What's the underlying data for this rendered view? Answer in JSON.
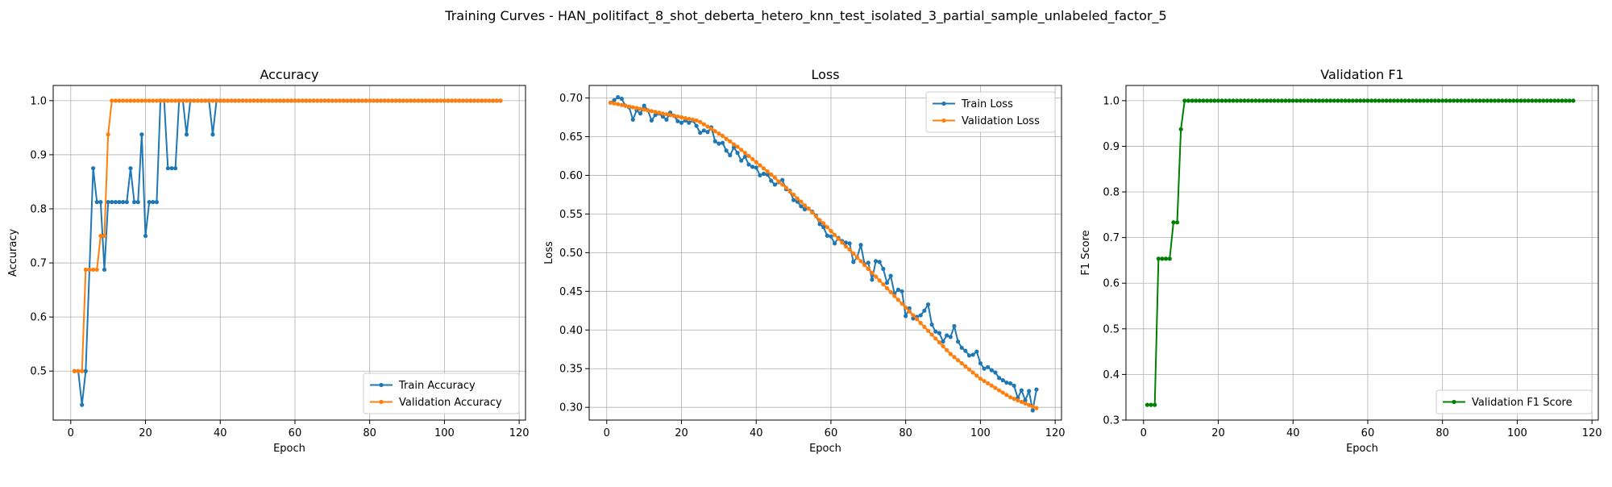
{
  "figure": {
    "suptitle": "Training Curves - HAN_politifact_8_shot_deberta_hetero_knn_test_isolated_3_partial_sample_unlabeled_factor_5"
  },
  "colors": {
    "blue": "#1f77b4",
    "orange": "#ff7f0e",
    "green": "#008000",
    "grid": "#b0b0b0"
  },
  "chart_data": [
    {
      "type": "line",
      "title": "Accuracy",
      "xlabel": "Epoch",
      "ylabel": "Accuracy",
      "xlim": [
        -4.7,
        121.7
      ],
      "ylim": [
        0.4094,
        1.0281
      ],
      "xticks": [
        0,
        20,
        40,
        60,
        80,
        100,
        120
      ],
      "yticks": [
        0.5,
        0.6,
        0.7,
        0.8,
        0.9,
        1.0
      ],
      "ytick_labels": [
        "0.5",
        "0.6",
        "0.7",
        "0.8",
        "0.9",
        "1.0"
      ],
      "grid": true,
      "legend_loc": "lower-right",
      "series": [
        {
          "name": "Train Accuracy",
          "color": "#1f77b4",
          "x_start": 1,
          "values": [
            0.5,
            0.5,
            0.4375,
            0.5,
            0.6875,
            0.875,
            0.8125,
            0.8125,
            0.6875,
            0.8125,
            0.8125,
            0.8125,
            0.8125,
            0.8125,
            0.8125,
            0.875,
            0.8125,
            0.8125,
            0.9375,
            0.75,
            0.8125,
            0.8125,
            0.8125,
            1.0,
            1.0,
            0.875,
            0.875,
            0.875,
            1.0,
            1.0,
            0.9375,
            1.0,
            1.0,
            1.0,
            1.0,
            1.0,
            1.0,
            0.9375,
            1.0,
            1.0,
            1.0,
            1.0,
            1.0,
            1.0,
            1.0,
            1.0,
            1.0,
            1.0,
            1.0,
            1.0,
            1.0,
            1.0,
            1.0,
            1.0,
            1.0,
            1.0,
            1.0,
            1.0,
            1.0,
            1.0,
            1.0,
            1.0,
            1.0,
            1.0,
            1.0,
            1.0,
            1.0,
            1.0,
            1.0,
            1.0,
            1.0,
            1.0,
            1.0,
            1.0,
            1.0,
            1.0,
            1.0,
            1.0,
            1.0,
            1.0,
            1.0,
            1.0,
            1.0,
            1.0,
            1.0,
            1.0,
            1.0,
            1.0,
            1.0,
            1.0,
            1.0,
            1.0,
            1.0,
            1.0,
            1.0,
            1.0,
            1.0,
            1.0,
            1.0,
            1.0,
            1.0,
            1.0,
            1.0,
            1.0,
            1.0,
            1.0,
            1.0,
            1.0,
            1.0,
            1.0,
            1.0,
            1.0,
            1.0,
            1.0,
            1.0
          ]
        },
        {
          "name": "Validation Accuracy",
          "color": "#ff7f0e",
          "x_start": 1,
          "values": [
            0.5,
            0.5,
            0.5,
            0.6875,
            0.6875,
            0.6875,
            0.6875,
            0.75,
            0.75,
            0.9375,
            1.0,
            1.0,
            1.0,
            1.0,
            1.0,
            1.0,
            1.0,
            1.0,
            1.0,
            1.0,
            1.0,
            1.0,
            1.0,
            1.0,
            1.0,
            1.0,
            1.0,
            1.0,
            1.0,
            1.0,
            1.0,
            1.0,
            1.0,
            1.0,
            1.0,
            1.0,
            1.0,
            1.0,
            1.0,
            1.0,
            1.0,
            1.0,
            1.0,
            1.0,
            1.0,
            1.0,
            1.0,
            1.0,
            1.0,
            1.0,
            1.0,
            1.0,
            1.0,
            1.0,
            1.0,
            1.0,
            1.0,
            1.0,
            1.0,
            1.0,
            1.0,
            1.0,
            1.0,
            1.0,
            1.0,
            1.0,
            1.0,
            1.0,
            1.0,
            1.0,
            1.0,
            1.0,
            1.0,
            1.0,
            1.0,
            1.0,
            1.0,
            1.0,
            1.0,
            1.0,
            1.0,
            1.0,
            1.0,
            1.0,
            1.0,
            1.0,
            1.0,
            1.0,
            1.0,
            1.0,
            1.0,
            1.0,
            1.0,
            1.0,
            1.0,
            1.0,
            1.0,
            1.0,
            1.0,
            1.0,
            1.0,
            1.0,
            1.0,
            1.0,
            1.0,
            1.0,
            1.0,
            1.0,
            1.0,
            1.0,
            1.0,
            1.0,
            1.0,
            1.0,
            1.0
          ]
        }
      ]
    },
    {
      "type": "line",
      "title": "Loss",
      "xlabel": "Epoch",
      "ylabel": "Loss",
      "xlim": [
        -4.7,
        121.7
      ],
      "ylim": [
        0.2835,
        0.7162
      ],
      "xticks": [
        0,
        20,
        40,
        60,
        80,
        100,
        120
      ],
      "yticks": [
        0.3,
        0.35,
        0.4,
        0.45,
        0.5,
        0.55,
        0.6,
        0.65,
        0.7
      ],
      "ytick_labels": [
        "0.30",
        "0.35",
        "0.40",
        "0.45",
        "0.50",
        "0.55",
        "0.60",
        "0.65",
        "0.70"
      ],
      "grid": true,
      "legend_loc": "top-right",
      "series": [
        {
          "name": "Train Loss",
          "color": "#1f77b4",
          "x_start": 1,
          "values": [
            0.694,
            0.697,
            0.701,
            0.699,
            0.69,
            0.688,
            0.672,
            0.684,
            0.68,
            0.69,
            0.684,
            0.671,
            0.678,
            0.68,
            0.676,
            0.672,
            0.681,
            0.677,
            0.67,
            0.668,
            0.671,
            0.668,
            0.671,
            0.664,
            0.655,
            0.658,
            0.656,
            0.662,
            0.644,
            0.641,
            0.642,
            0.632,
            0.626,
            0.636,
            0.629,
            0.619,
            0.624,
            0.614,
            0.611,
            0.61,
            0.6,
            0.602,
            0.601,
            0.593,
            0.588,
            0.591,
            0.594,
            0.582,
            0.58,
            0.568,
            0.566,
            0.56,
            0.556,
            0.557,
            0.553,
            0.548,
            0.537,
            0.533,
            0.522,
            0.521,
            0.512,
            0.519,
            0.515,
            0.513,
            0.512,
            0.488,
            0.494,
            0.51,
            0.485,
            0.487,
            0.465,
            0.489,
            0.488,
            0.479,
            0.461,
            0.47,
            0.447,
            0.452,
            0.45,
            0.418,
            0.428,
            0.415,
            0.417,
            0.419,
            0.425,
            0.433,
            0.407,
            0.398,
            0.396,
            0.385,
            0.393,
            0.391,
            0.405,
            0.385,
            0.377,
            0.373,
            0.367,
            0.368,
            0.372,
            0.357,
            0.35,
            0.352,
            0.348,
            0.345,
            0.338,
            0.335,
            0.332,
            0.331,
            0.328,
            0.312,
            0.322,
            0.309,
            0.321,
            0.296,
            0.323
          ]
        },
        {
          "name": "Validation Loss",
          "color": "#ff7f0e",
          "x_start": 1,
          "values": [
            0.694,
            0.693,
            0.692,
            0.691,
            0.69,
            0.689,
            0.688,
            0.687,
            0.686,
            0.685,
            0.684,
            0.683,
            0.682,
            0.681,
            0.68,
            0.679,
            0.678,
            0.677,
            0.676,
            0.675,
            0.674,
            0.673,
            0.672,
            0.671,
            0.669,
            0.666,
            0.663,
            0.66,
            0.657,
            0.654,
            0.651,
            0.647,
            0.644,
            0.64,
            0.637,
            0.633,
            0.629,
            0.625,
            0.621,
            0.617,
            0.613,
            0.609,
            0.605,
            0.601,
            0.597,
            0.592,
            0.588,
            0.584,
            0.579,
            0.575,
            0.57,
            0.566,
            0.561,
            0.557,
            0.552,
            0.547,
            0.542,
            0.538,
            0.533,
            0.528,
            0.523,
            0.518,
            0.513,
            0.508,
            0.504,
            0.499,
            0.494,
            0.489,
            0.484,
            0.479,
            0.474,
            0.469,
            0.464,
            0.459,
            0.454,
            0.449,
            0.444,
            0.439,
            0.434,
            0.429,
            0.424,
            0.419,
            0.414,
            0.409,
            0.404,
            0.399,
            0.394,
            0.389,
            0.384,
            0.379,
            0.374,
            0.369,
            0.365,
            0.361,
            0.357,
            0.353,
            0.349,
            0.345,
            0.341,
            0.337,
            0.334,
            0.331,
            0.328,
            0.325,
            0.322,
            0.319,
            0.316,
            0.313,
            0.311,
            0.309,
            0.307,
            0.305,
            0.303,
            0.301,
            0.299
          ]
        }
      ]
    },
    {
      "type": "line",
      "title": "Validation F1",
      "xlabel": "Epoch",
      "ylabel": "F1 Score",
      "xlim": [
        -4.7,
        121.7
      ],
      "ylim": [
        0.3,
        1.0333
      ],
      "xticks": [
        0,
        20,
        40,
        60,
        80,
        100,
        120
      ],
      "yticks": [
        0.3,
        0.4,
        0.5,
        0.6,
        0.7,
        0.8,
        0.9,
        1.0
      ],
      "ytick_labels": [
        "0.3",
        "0.4",
        "0.5",
        "0.6",
        "0.7",
        "0.8",
        "0.9",
        "1.0"
      ],
      "grid": true,
      "legend_loc": "lower-right",
      "series": [
        {
          "name": "Validation F1 Score",
          "color": "#008000",
          "x_start": 1,
          "values": [
            0.3333,
            0.3333,
            0.3333,
            0.6536,
            0.6536,
            0.6536,
            0.6536,
            0.7333,
            0.7333,
            0.9373,
            1.0,
            1.0,
            1.0,
            1.0,
            1.0,
            1.0,
            1.0,
            1.0,
            1.0,
            1.0,
            1.0,
            1.0,
            1.0,
            1.0,
            1.0,
            1.0,
            1.0,
            1.0,
            1.0,
            1.0,
            1.0,
            1.0,
            1.0,
            1.0,
            1.0,
            1.0,
            1.0,
            1.0,
            1.0,
            1.0,
            1.0,
            1.0,
            1.0,
            1.0,
            1.0,
            1.0,
            1.0,
            1.0,
            1.0,
            1.0,
            1.0,
            1.0,
            1.0,
            1.0,
            1.0,
            1.0,
            1.0,
            1.0,
            1.0,
            1.0,
            1.0,
            1.0,
            1.0,
            1.0,
            1.0,
            1.0,
            1.0,
            1.0,
            1.0,
            1.0,
            1.0,
            1.0,
            1.0,
            1.0,
            1.0,
            1.0,
            1.0,
            1.0,
            1.0,
            1.0,
            1.0,
            1.0,
            1.0,
            1.0,
            1.0,
            1.0,
            1.0,
            1.0,
            1.0,
            1.0,
            1.0,
            1.0,
            1.0,
            1.0,
            1.0,
            1.0,
            1.0,
            1.0,
            1.0,
            1.0,
            1.0,
            1.0,
            1.0,
            1.0,
            1.0,
            1.0,
            1.0,
            1.0,
            1.0,
            1.0,
            1.0,
            1.0,
            1.0,
            1.0,
            1.0
          ]
        }
      ]
    }
  ]
}
